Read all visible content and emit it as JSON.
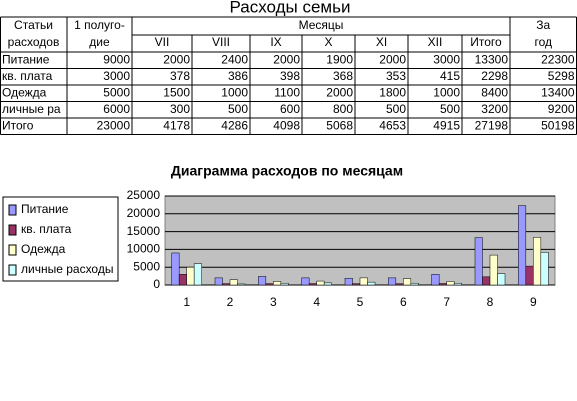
{
  "table": {
    "title": "Расходы семьи",
    "head_lines": [
      [
        "Статьи",
        "расходов"
      ],
      [
        "1 полуго-",
        "дие"
      ],
      [
        "За",
        "год"
      ]
    ],
    "group_header": "Месяцы",
    "months": [
      "VII",
      "VIII",
      "IX",
      "X",
      "XI",
      "XII",
      "Итого"
    ],
    "rows": [
      [
        "Питание",
        9000,
        2000,
        2400,
        2000,
        1900,
        2000,
        3000,
        13300,
        22300
      ],
      [
        "кв. плата",
        3000,
        378,
        386,
        398,
        368,
        353,
        415,
        2298,
        5298
      ],
      [
        "Одежда",
        5000,
        1500,
        1000,
        1100,
        2000,
        1800,
        1000,
        8400,
        13400
      ],
      [
        "личные ра",
        6000,
        300,
        500,
        600,
        800,
        500,
        500,
        3200,
        9200
      ],
      [
        "Итого",
        23000,
        4178,
        4286,
        4098,
        5068,
        4653,
        4915,
        27198,
        50198
      ]
    ]
  },
  "chart_data": {
    "type": "bar",
    "title": "Диаграмма расходов по месяцам",
    "categories": [
      "1",
      "2",
      "3",
      "4",
      "5",
      "6",
      "7",
      "8",
      "9"
    ],
    "series": [
      {
        "name": "Питание",
        "color": "#9999ff",
        "values": [
          9000,
          2000,
          2400,
          2000,
          1900,
          2000,
          3000,
          13300,
          22300
        ]
      },
      {
        "name": "кв. плата",
        "color": "#993366",
        "values": [
          3000,
          378,
          386,
          398,
          368,
          353,
          415,
          2298,
          5298
        ]
      },
      {
        "name": "Одежда",
        "color": "#ffffcc",
        "values": [
          5000,
          1500,
          1000,
          1100,
          2000,
          1800,
          1000,
          8400,
          13400
        ]
      },
      {
        "name": "личные расходы",
        "color": "#ccffff",
        "values": [
          6000,
          300,
          500,
          600,
          800,
          500,
          500,
          3200,
          9200
        ]
      }
    ],
    "ylim": [
      0,
      25000
    ],
    "yticks": [
      0,
      5000,
      10000,
      15000,
      20000,
      25000
    ],
    "grid": true,
    "legend": "left",
    "plot_background": "#c0c0c0"
  }
}
